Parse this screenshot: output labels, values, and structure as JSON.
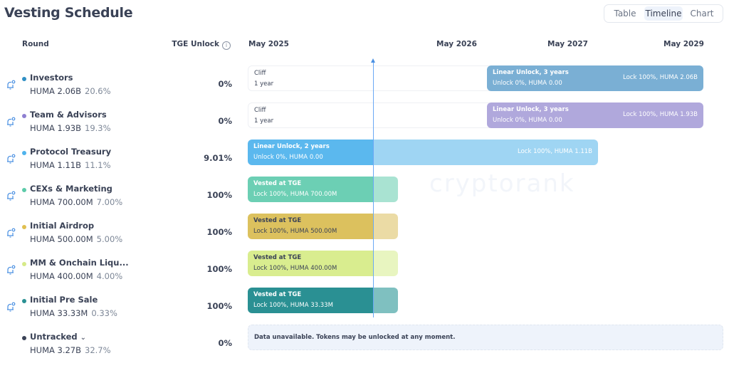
{
  "title": "Vesting Schedule",
  "view_tabs": [
    {
      "label": "Table",
      "active": false
    },
    {
      "label": "Timeline",
      "active": true
    },
    {
      "label": "Chart",
      "active": false
    }
  ],
  "columns": {
    "round": "Round",
    "tge": "TGE Unlock"
  },
  "timeline_labels": [
    "May 2025",
    "May 2026",
    "May 2027",
    "May 2029"
  ],
  "watermark": "cryptorank",
  "rounds": [
    {
      "name": "Investors",
      "amount": "HUMA 2.06B",
      "share": "20.6%",
      "tge": "0%",
      "color": "#2f8fc4",
      "cliff": {
        "title": "Cliff",
        "sub": "1 year"
      },
      "linear": {
        "title": "Linear Unlock, 3 years",
        "sub": "Unlock 0%, HUMA 0.00",
        "right": "Lock 100%, HUMA 2.06B",
        "color": "#7aafd4"
      }
    },
    {
      "name": "Team & Advisors",
      "amount": "HUMA 1.93B",
      "share": "19.3%",
      "tge": "0%",
      "color": "#8e7fd1",
      "cliff": {
        "title": "Cliff",
        "sub": "1 year"
      },
      "linear": {
        "title": "Linear Unlock, 3 years",
        "sub": "Unlock 0%, HUMA 0.00",
        "right": "Lock 100%, HUMA 1.93B",
        "color": "#b0a8dc"
      }
    },
    {
      "name": "Protocol Treasury",
      "amount": "HUMA 1.11B",
      "share": "11.1%",
      "tge": "9.01%",
      "color": "#4fb3ec",
      "linear": {
        "title": "Linear Unlock, 2 years",
        "sub": "Unlock 0%, HUMA 0.00",
        "right": "Lock 100%, HUMA 1.11B",
        "color": "#5bb8ee",
        "light": "#9fd5f3"
      }
    },
    {
      "name": "CEXs & Marketing",
      "amount": "HUMA 700.00M",
      "share": "7.00%",
      "tge": "100%",
      "color": "#5ccaa9",
      "vested": {
        "title": "Vested at TGE",
        "sub": "Lock 100%, HUMA 700.00M",
        "color": "#6ccfb4",
        "light": "#a9e3d2"
      }
    },
    {
      "name": "Initial Airdrop",
      "amount": "HUMA 500.00M",
      "share": "5.00%",
      "tge": "100%",
      "color": "#e0bf50",
      "vested": {
        "title": "Vested at TGE",
        "sub": "Lock 100%, HUMA 500.00M",
        "color": "#dcc15e",
        "light": "#ebdba5"
      }
    },
    {
      "name": "MM & Onchain Liqu...",
      "amount": "HUMA 400.00M",
      "share": "4.00%",
      "tge": "100%",
      "color": "#d6ea88",
      "vested": {
        "title": "Vested at TGE",
        "sub": "Lock 100%, HUMA 400.00M",
        "color": "#d9ed8f",
        "light": "#e8f5c0"
      }
    },
    {
      "name": "Initial Pre Sale",
      "amount": "HUMA 33.33M",
      "share": "0.33%",
      "tge": "100%",
      "color": "#2a9093",
      "vested": {
        "title": "Vested at TGE",
        "sub": "Lock 100%, HUMA 33.33M",
        "color": "#2a9093",
        "light": "#7fc0c0"
      }
    },
    {
      "name": "Untracked",
      "amount": "HUMA 3.27B",
      "share": "32.7%",
      "tge": "0%",
      "color": "#3a4256",
      "note": "Data unavailable. Tokens may be unlocked at any moment."
    }
  ]
}
